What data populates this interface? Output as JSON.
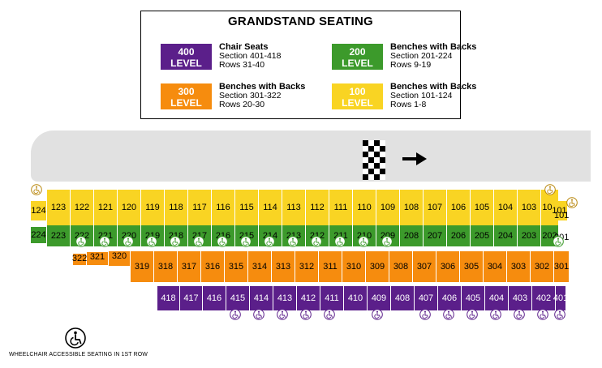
{
  "legend": {
    "title": "GRANDSTAND SEATING",
    "items": [
      {
        "level_num": "400",
        "level_word": "LEVEL",
        "name": "Chair Seats",
        "sections": "Section 401-418",
        "rows": "Rows 31-40",
        "color": "#5b1f8a"
      },
      {
        "level_num": "200",
        "level_word": "LEVEL",
        "name": "Benches with Backs",
        "sections": "Section 201-224",
        "rows": "Rows 9-19",
        "color": "#3c9a2b"
      },
      {
        "level_num": "300",
        "level_word": "LEVEL",
        "name": "Benches with Backs",
        "sections": "Section 301-322",
        "rows": "Rows 20-30",
        "color": "#f68c0e"
      },
      {
        "level_num": "100",
        "level_word": "LEVEL",
        "name": "Benches with Backs",
        "sections": "Section 101-124",
        "rows": "Rows 1-8",
        "color": "#f9d423"
      }
    ]
  },
  "sections": {
    "row100": [
      "123",
      "122",
      "121",
      "120",
      "119",
      "118",
      "117",
      "116",
      "115",
      "114",
      "113",
      "112",
      "111",
      "110",
      "109",
      "108",
      "107",
      "106",
      "105",
      "104",
      "103",
      "102"
    ],
    "row200": [
      "223",
      "222",
      "221",
      "220",
      "219",
      "218",
      "217",
      "216",
      "215",
      "214",
      "213",
      "212",
      "211",
      "210",
      "209",
      "208",
      "207",
      "206",
      "205",
      "204",
      "203",
      "202"
    ],
    "row300": [
      "322",
      "321",
      "320",
      "319",
      "318",
      "317",
      "316",
      "315",
      "314",
      "313",
      "312",
      "311",
      "310",
      "309",
      "308",
      "307",
      "306",
      "305",
      "304",
      "303",
      "302",
      "301"
    ],
    "row400": [
      "418",
      "417",
      "416",
      "415",
      "414",
      "413",
      "412",
      "411",
      "410",
      "409",
      "408",
      "407",
      "406",
      "405",
      "404",
      "403",
      "402",
      "401"
    ],
    "end_labels": {
      "left_100": "124",
      "left_200": "224",
      "right_101": "101",
      "right_201": "201"
    }
  },
  "wheelchair_icon": "wheelchair-icon",
  "footnote": "WHEELCHAIR ACCESSIBLE SEATING IN 1ST ROW"
}
